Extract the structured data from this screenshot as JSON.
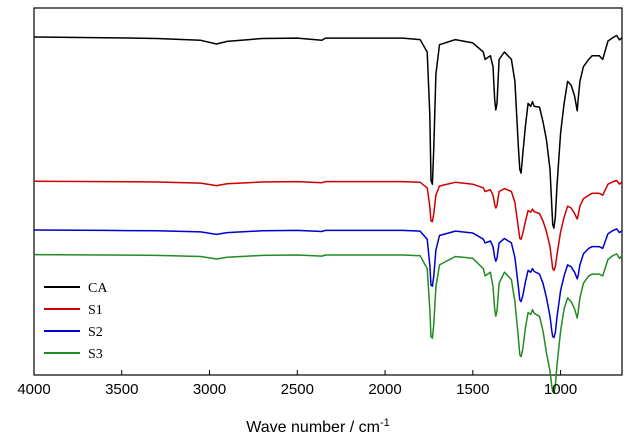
{
  "chart_data": {
    "type": "line",
    "title": "",
    "xlabel": "Wave number / cm",
    "xlabel_sup": "-1",
    "ylabel": "",
    "xlim": [
      4000,
      650
    ],
    "x_reversed": true,
    "xticks": [
      "4000",
      "3500",
      "3000",
      "2500",
      "2000",
      "1500",
      "1000"
    ],
    "xtick_values": [
      4000,
      3500,
      3000,
      2500,
      2000,
      1500,
      1000
    ],
    "y_axis_visible": false,
    "grid": false,
    "legend_position": "bottom-left",
    "ylim": [
      0,
      1
    ],
    "series": [
      {
        "name": "CA",
        "color": "#000000",
        "points": [
          [
            4000,
            0.921
          ],
          [
            3600,
            0.919
          ],
          [
            3300,
            0.917
          ],
          [
            3050,
            0.912
          ],
          [
            2960,
            0.902
          ],
          [
            2900,
            0.909
          ],
          [
            2700,
            0.917
          ],
          [
            2500,
            0.918
          ],
          [
            2360,
            0.912
          ],
          [
            2340,
            0.918
          ],
          [
            2100,
            0.918
          ],
          [
            1900,
            0.918
          ],
          [
            1800,
            0.914
          ],
          [
            1760,
            0.88
          ],
          [
            1745,
            0.71
          ],
          [
            1738,
            0.53
          ],
          [
            1730,
            0.52
          ],
          [
            1722,
            0.62
          ],
          [
            1710,
            0.82
          ],
          [
            1690,
            0.9
          ],
          [
            1600,
            0.914
          ],
          [
            1500,
            0.905
          ],
          [
            1440,
            0.88
          ],
          [
            1430,
            0.86
          ],
          [
            1400,
            0.87
          ],
          [
            1385,
            0.84
          ],
          [
            1375,
            0.75
          ],
          [
            1369,
            0.722
          ],
          [
            1362,
            0.74
          ],
          [
            1350,
            0.86
          ],
          [
            1320,
            0.88
          ],
          [
            1280,
            0.86
          ],
          [
            1260,
            0.8
          ],
          [
            1240,
            0.62
          ],
          [
            1232,
            0.56
          ],
          [
            1225,
            0.55
          ],
          [
            1216,
            0.6
          ],
          [
            1200,
            0.68
          ],
          [
            1185,
            0.74
          ],
          [
            1170,
            0.732
          ],
          [
            1160,
            0.745
          ],
          [
            1150,
            0.732
          ],
          [
            1120,
            0.73
          ],
          [
            1100,
            0.69
          ],
          [
            1080,
            0.64
          ],
          [
            1060,
            0.56
          ],
          [
            1050,
            0.46
          ],
          [
            1045,
            0.41
          ],
          [
            1038,
            0.4
          ],
          [
            1030,
            0.43
          ],
          [
            1020,
            0.52
          ],
          [
            1000,
            0.66
          ],
          [
            980,
            0.74
          ],
          [
            960,
            0.8
          ],
          [
            940,
            0.79
          ],
          [
            920,
            0.76
          ],
          [
            905,
            0.72
          ],
          [
            900,
            0.75
          ],
          [
            890,
            0.8
          ],
          [
            870,
            0.84
          ],
          [
            840,
            0.86
          ],
          [
            820,
            0.87
          ],
          [
            780,
            0.87
          ],
          [
            760,
            0.86
          ],
          [
            730,
            0.91
          ],
          [
            700,
            0.92
          ],
          [
            680,
            0.925
          ],
          [
            665,
            0.913
          ],
          [
            650,
            0.919
          ]
        ]
      },
      {
        "name": "S1",
        "color": "#cc0000",
        "points": [
          [
            4000,
            0.528
          ],
          [
            3600,
            0.527
          ],
          [
            3300,
            0.526
          ],
          [
            3050,
            0.523
          ],
          [
            2960,
            0.516
          ],
          [
            2900,
            0.521
          ],
          [
            2700,
            0.526
          ],
          [
            2500,
            0.527
          ],
          [
            2360,
            0.524
          ],
          [
            2340,
            0.527
          ],
          [
            2100,
            0.527
          ],
          [
            1900,
            0.527
          ],
          [
            1800,
            0.525
          ],
          [
            1760,
            0.51
          ],
          [
            1745,
            0.46
          ],
          [
            1738,
            0.42
          ],
          [
            1730,
            0.418
          ],
          [
            1722,
            0.44
          ],
          [
            1710,
            0.49
          ],
          [
            1690,
            0.515
          ],
          [
            1600,
            0.525
          ],
          [
            1500,
            0.52
          ],
          [
            1440,
            0.51
          ],
          [
            1430,
            0.5
          ],
          [
            1400,
            0.505
          ],
          [
            1385,
            0.49
          ],
          [
            1375,
            0.465
          ],
          [
            1369,
            0.455
          ],
          [
            1362,
            0.462
          ],
          [
            1350,
            0.5
          ],
          [
            1320,
            0.508
          ],
          [
            1280,
            0.5
          ],
          [
            1260,
            0.47
          ],
          [
            1240,
            0.4
          ],
          [
            1232,
            0.372
          ],
          [
            1225,
            0.37
          ],
          [
            1216,
            0.385
          ],
          [
            1200,
            0.42
          ],
          [
            1185,
            0.448
          ],
          [
            1170,
            0.444
          ],
          [
            1160,
            0.452
          ],
          [
            1150,
            0.445
          ],
          [
            1120,
            0.44
          ],
          [
            1100,
            0.42
          ],
          [
            1080,
            0.39
          ],
          [
            1060,
            0.35
          ],
          [
            1050,
            0.31
          ],
          [
            1045,
            0.29
          ],
          [
            1038,
            0.285
          ],
          [
            1030,
            0.295
          ],
          [
            1020,
            0.33
          ],
          [
            1000,
            0.39
          ],
          [
            980,
            0.43
          ],
          [
            960,
            0.46
          ],
          [
            940,
            0.455
          ],
          [
            920,
            0.44
          ],
          [
            905,
            0.425
          ],
          [
            900,
            0.435
          ],
          [
            890,
            0.46
          ],
          [
            870,
            0.48
          ],
          [
            840,
            0.49
          ],
          [
            820,
            0.495
          ],
          [
            780,
            0.495
          ],
          [
            760,
            0.49
          ],
          [
            730,
            0.52
          ],
          [
            700,
            0.527
          ],
          [
            680,
            0.53
          ],
          [
            665,
            0.52
          ],
          [
            650,
            0.526
          ]
        ]
      },
      {
        "name": "S2",
        "color": "#0000cc",
        "points": [
          [
            4000,
            0.395
          ],
          [
            3600,
            0.394
          ],
          [
            3300,
            0.393
          ],
          [
            3050,
            0.39
          ],
          [
            2960,
            0.383
          ],
          [
            2900,
            0.388
          ],
          [
            2700,
            0.393
          ],
          [
            2500,
            0.394
          ],
          [
            2360,
            0.391
          ],
          [
            2340,
            0.394
          ],
          [
            2100,
            0.394
          ],
          [
            1900,
            0.394
          ],
          [
            1800,
            0.392
          ],
          [
            1760,
            0.37
          ],
          [
            1745,
            0.3
          ],
          [
            1738,
            0.245
          ],
          [
            1730,
            0.242
          ],
          [
            1722,
            0.27
          ],
          [
            1710,
            0.34
          ],
          [
            1690,
            0.38
          ],
          [
            1600,
            0.392
          ],
          [
            1500,
            0.387
          ],
          [
            1440,
            0.37
          ],
          [
            1430,
            0.36
          ],
          [
            1400,
            0.365
          ],
          [
            1385,
            0.35
          ],
          [
            1375,
            0.32
          ],
          [
            1369,
            0.31
          ],
          [
            1362,
            0.318
          ],
          [
            1350,
            0.36
          ],
          [
            1320,
            0.372
          ],
          [
            1280,
            0.36
          ],
          [
            1260,
            0.32
          ],
          [
            1240,
            0.24
          ],
          [
            1232,
            0.205
          ],
          [
            1225,
            0.2
          ],
          [
            1216,
            0.215
          ],
          [
            1200,
            0.255
          ],
          [
            1185,
            0.285
          ],
          [
            1170,
            0.28
          ],
          [
            1160,
            0.29
          ],
          [
            1150,
            0.282
          ],
          [
            1120,
            0.275
          ],
          [
            1100,
            0.25
          ],
          [
            1080,
            0.21
          ],
          [
            1060,
            0.16
          ],
          [
            1050,
            0.12
          ],
          [
            1045,
            0.105
          ],
          [
            1038,
            0.102
          ],
          [
            1030,
            0.115
          ],
          [
            1020,
            0.16
          ],
          [
            1000,
            0.23
          ],
          [
            980,
            0.27
          ],
          [
            960,
            0.3
          ],
          [
            940,
            0.295
          ],
          [
            920,
            0.28
          ],
          [
            905,
            0.262
          ],
          [
            900,
            0.27
          ],
          [
            890,
            0.3
          ],
          [
            870,
            0.33
          ],
          [
            840,
            0.345
          ],
          [
            820,
            0.35
          ],
          [
            780,
            0.35
          ],
          [
            760,
            0.345
          ],
          [
            730,
            0.385
          ],
          [
            700,
            0.394
          ],
          [
            680,
            0.398
          ],
          [
            665,
            0.388
          ],
          [
            650,
            0.393
          ]
        ]
      },
      {
        "name": "S3",
        "color": "#228b22",
        "points": [
          [
            4000,
            0.328
          ],
          [
            3600,
            0.327
          ],
          [
            3300,
            0.326
          ],
          [
            3050,
            0.323
          ],
          [
            2960,
            0.316
          ],
          [
            2900,
            0.321
          ],
          [
            2700,
            0.326
          ],
          [
            2500,
            0.327
          ],
          [
            2360,
            0.324
          ],
          [
            2340,
            0.327
          ],
          [
            2100,
            0.327
          ],
          [
            1900,
            0.327
          ],
          [
            1800,
            0.325
          ],
          [
            1760,
            0.29
          ],
          [
            1745,
            0.18
          ],
          [
            1738,
            0.105
          ],
          [
            1730,
            0.1
          ],
          [
            1722,
            0.14
          ],
          [
            1710,
            0.24
          ],
          [
            1690,
            0.3
          ],
          [
            1600,
            0.323
          ],
          [
            1500,
            0.318
          ],
          [
            1440,
            0.29
          ],
          [
            1430,
            0.27
          ],
          [
            1400,
            0.28
          ],
          [
            1385,
            0.24
          ],
          [
            1375,
            0.18
          ],
          [
            1369,
            0.16
          ],
          [
            1362,
            0.175
          ],
          [
            1350,
            0.25
          ],
          [
            1320,
            0.28
          ],
          [
            1280,
            0.26
          ],
          [
            1260,
            0.2
          ],
          [
            1240,
            0.1
          ],
          [
            1232,
            0.055
          ],
          [
            1225,
            0.05
          ],
          [
            1216,
            0.07
          ],
          [
            1200,
            0.13
          ],
          [
            1185,
            0.17
          ],
          [
            1170,
            0.165
          ],
          [
            1160,
            0.178
          ],
          [
            1150,
            0.168
          ],
          [
            1120,
            0.16
          ],
          [
            1100,
            0.12
          ],
          [
            1080,
            0.06
          ],
          [
            1060,
            0.01
          ],
          [
            1050,
            -0.03
          ],
          [
            1045,
            -0.045
          ],
          [
            1038,
            -0.05
          ],
          [
            1030,
            -0.03
          ],
          [
            1020,
            0.03
          ],
          [
            1000,
            0.12
          ],
          [
            980,
            0.18
          ],
          [
            960,
            0.21
          ],
          [
            940,
            0.2
          ],
          [
            920,
            0.18
          ],
          [
            905,
            0.155
          ],
          [
            900,
            0.17
          ],
          [
            890,
            0.21
          ],
          [
            870,
            0.25
          ],
          [
            840,
            0.27
          ],
          [
            820,
            0.275
          ],
          [
            780,
            0.275
          ],
          [
            760,
            0.27
          ],
          [
            730,
            0.315
          ],
          [
            700,
            0.326
          ],
          [
            680,
            0.33
          ],
          [
            665,
            0.318
          ],
          [
            650,
            0.325
          ]
        ]
      }
    ]
  }
}
